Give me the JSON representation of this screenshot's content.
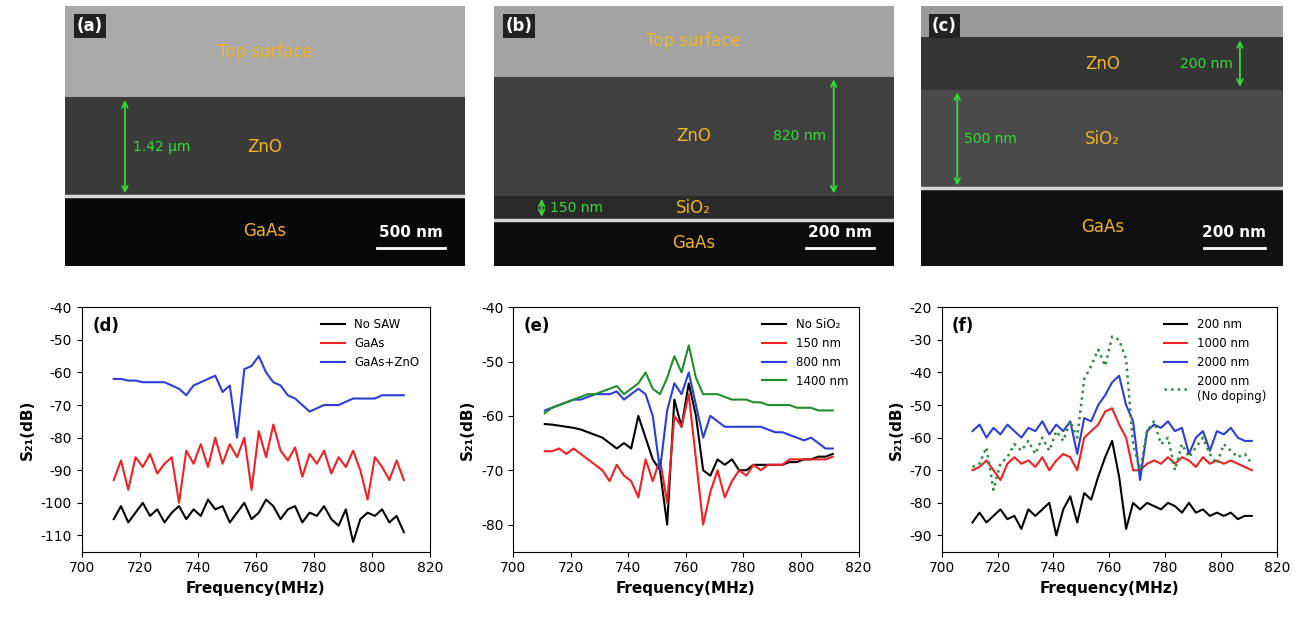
{
  "sem_images": [
    {
      "label": "(a)",
      "scale_bar": "500 nm",
      "layers": [
        {
          "name": "Top surface",
          "color": "#a9a9a9"
        },
        {
          "name": "ZnO",
          "color": "#3b3b3b",
          "thickness": "1.42 μm"
        },
        {
          "name": "GaAs",
          "color": "#080808"
        }
      ]
    },
    {
      "label": "(b)",
      "scale_bar": "200 nm",
      "layers": [
        {
          "name": "Top surface",
          "color": "#a3a3a3"
        },
        {
          "name": "ZnO",
          "color": "#404040",
          "thickness": "820 nm"
        },
        {
          "name": "SiO₂",
          "color": "#2a2a2a",
          "thickness": "150 nm"
        },
        {
          "name": "GaAs",
          "color": "#0c0c0c"
        }
      ]
    },
    {
      "label": "(c)",
      "scale_bar": "200 nm",
      "layers": [
        {
          "name": null,
          "color": "#9a9a9a"
        },
        {
          "name": "ZnO",
          "color": "#353535",
          "thickness": "200 nm"
        },
        {
          "name": "SiO₂",
          "color": "#4a4a4a",
          "thickness": "500 nm"
        },
        {
          "name": "GaAs",
          "color": "#101010"
        }
      ]
    }
  ],
  "chart_data": [
    {
      "type": "line",
      "title": "(d)",
      "x_label": "Frequency(MHz)",
      "y_label": "S₂₁(dB)",
      "x": [
        711,
        713.5,
        716,
        718.5,
        721,
        723.5,
        726,
        728.5,
        731,
        733.5,
        736,
        738.5,
        741,
        743.5,
        746,
        748.5,
        751,
        753.5,
        756,
        758.5,
        761,
        763.5,
        766,
        768.5,
        771,
        773.5,
        776,
        778.5,
        781,
        783.5,
        786,
        788.5,
        791,
        793.5,
        796,
        798.5,
        801,
        803.5,
        806,
        808.5,
        811
      ],
      "xlim": [
        700,
        820
      ],
      "xticks": [
        700,
        720,
        740,
        760,
        780,
        800,
        820
      ],
      "ylim": [
        -115,
        -40
      ],
      "yticks": [
        -110,
        -100,
        -90,
        -80,
        -70,
        -60,
        -50,
        -40
      ],
      "legend": "upper right",
      "series": [
        {
          "name": "No SAW",
          "color": "#000000",
          "line_style": "solid",
          "values": [
            -105,
            -101,
            -106,
            -103,
            -100,
            -104,
            -102,
            -106,
            -103,
            -101,
            -105,
            -102,
            -104,
            -99,
            -102,
            -101,
            -106,
            -103,
            -100,
            -105,
            -103,
            -99,
            -101,
            -105,
            -102,
            -101,
            -106,
            -103,
            -104,
            -101,
            -105,
            -107,
            -102,
            -112,
            -105,
            -103,
            -104,
            -102,
            -106,
            -104,
            -109
          ]
        },
        {
          "name": "GaAs",
          "color": "#ee2222",
          "line_style": "solid",
          "values": [
            -93,
            -87,
            -96,
            -86,
            -89,
            -85,
            -91,
            -88,
            -86,
            -100,
            -84,
            -88,
            -82,
            -89,
            -80,
            -88,
            -82,
            -86,
            -80,
            -96,
            -78,
            -86,
            -76,
            -84,
            -87,
            -83,
            -92,
            -85,
            -88,
            -84,
            -91,
            -86,
            -89,
            -84,
            -90,
            -99,
            -86,
            -89,
            -93,
            -87,
            -93
          ]
        },
        {
          "name": "GaAs+ZnO",
          "color": "#2b3fd6",
          "line_style": "solid",
          "values": [
            -62,
            -62,
            -62.5,
            -62.5,
            -63,
            -63,
            -63,
            -63,
            -64,
            -65,
            -67,
            -64,
            -63,
            -62,
            -61,
            -66,
            -64,
            -80,
            -59,
            -58,
            -55,
            -60,
            -63,
            -64,
            -67,
            -68,
            -70,
            -72,
            -71,
            -70,
            -70,
            -70,
            -69,
            -68,
            -68,
            -68,
            -68,
            -67,
            -67,
            -67,
            -67
          ]
        }
      ]
    },
    {
      "type": "line",
      "title": "(e)",
      "x_label": "Frequency(MHz)",
      "y_label": "S₂₁(dB)",
      "x": [
        711,
        713.5,
        716,
        718.5,
        721,
        723.5,
        726,
        728.5,
        731,
        733.5,
        736,
        738.5,
        741,
        743.5,
        746,
        748.5,
        751,
        753.5,
        756,
        758.5,
        761,
        763.5,
        766,
        768.5,
        771,
        773.5,
        776,
        778.5,
        781,
        783.5,
        786,
        788.5,
        791,
        793.5,
        796,
        798.5,
        801,
        803.5,
        806,
        808.5,
        811
      ],
      "xlim": [
        700,
        820
      ],
      "xticks": [
        700,
        720,
        740,
        760,
        780,
        800,
        820
      ],
      "ylim": [
        -85,
        -40
      ],
      "yticks": [
        -80,
        -70,
        -60,
        -50,
        -40
      ],
      "legend": "upper right",
      "series": [
        {
          "name": "No SiO₂",
          "color": "#000000",
          "line_style": "solid",
          "values": [
            -61.5,
            -61.6,
            -61.8,
            -62,
            -62.2,
            -62.5,
            -63,
            -63.5,
            -64,
            -65,
            -66,
            -65,
            -66,
            -60,
            -64,
            -68,
            -70,
            -80,
            -57,
            -62,
            -54,
            -60,
            -70,
            -71,
            -68,
            -69,
            -68,
            -70,
            -70,
            -69,
            -69,
            -69,
            -69,
            -69,
            -68.5,
            -68.5,
            -68,
            -68,
            -67.5,
            -67.5,
            -67
          ]
        },
        {
          "name": "150 nm",
          "color": "#ee2222",
          "line_style": "solid",
          "values": [
            -66.5,
            -66.5,
            -66,
            -67,
            -66,
            -67,
            -68,
            -69,
            -70,
            -72,
            -69,
            -71,
            -72,
            -75,
            -68,
            -72,
            -68,
            -76,
            -60,
            -62,
            -56,
            -68,
            -80,
            -74,
            -70,
            -75,
            -72,
            -70,
            -71,
            -69,
            -70,
            -69,
            -69,
            -69,
            -68,
            -68,
            -68,
            -68,
            -68,
            -68,
            -67.5
          ]
        },
        {
          "name": "800 nm",
          "color": "#2b3fd6",
          "line_style": "solid",
          "values": [
            -59,
            -58.5,
            -58,
            -57.5,
            -57,
            -57,
            -56.5,
            -56,
            -56,
            -56,
            -55.5,
            -57,
            -56,
            -55,
            -56,
            -60,
            -70,
            -59,
            -54,
            -56,
            -52,
            -58,
            -64,
            -60,
            -61,
            -62,
            -62,
            -62,
            -62,
            -62,
            -62,
            -62.5,
            -63,
            -63,
            -63.5,
            -64,
            -64.5,
            -64,
            -65,
            -66,
            -66
          ]
        },
        {
          "name": "1400 nm",
          "color": "#1f8f2a",
          "line_style": "solid",
          "values": [
            -59.5,
            -58.5,
            -58,
            -57.5,
            -57,
            -56.5,
            -56,
            -56,
            -55.5,
            -55,
            -54.5,
            -56,
            -55,
            -54,
            -52,
            -55,
            -56,
            -53,
            -49,
            -52,
            -47,
            -53,
            -56,
            -56,
            -56,
            -56.5,
            -57,
            -57,
            -57,
            -57.5,
            -57.5,
            -58,
            -58,
            -58,
            -58,
            -58.5,
            -58.5,
            -58.5,
            -59,
            -59,
            -59
          ]
        }
      ]
    },
    {
      "type": "line",
      "title": "(f)",
      "x_label": "Frequency(MHz)",
      "y_label": "S₂₁(dB)",
      "x": [
        711,
        713.5,
        716,
        718.5,
        721,
        723.5,
        726,
        728.5,
        731,
        733.5,
        736,
        738.5,
        741,
        743.5,
        746,
        748.5,
        751,
        753.5,
        756,
        758.5,
        761,
        763.5,
        766,
        768.5,
        771,
        773.5,
        776,
        778.5,
        781,
        783.5,
        786,
        788.5,
        791,
        793.5,
        796,
        798.5,
        801,
        803.5,
        806,
        808.5,
        811
      ],
      "xlim": [
        700,
        820
      ],
      "xticks": [
        700,
        720,
        740,
        760,
        780,
        800,
        820
      ],
      "ylim": [
        -95,
        -20
      ],
      "yticks": [
        -90,
        -80,
        -70,
        -60,
        -50,
        -40,
        -30,
        -20
      ],
      "legend": "upper right",
      "series": [
        {
          "name": "200 nm",
          "color": "#000000",
          "line_style": "solid",
          "values": [
            -86,
            -83,
            -86,
            -84,
            -82,
            -85,
            -84,
            -88,
            -82,
            -84,
            -82,
            -80,
            -90,
            -82,
            -78,
            -86,
            -77,
            -79,
            -72,
            -66,
            -61,
            -72,
            -88,
            -80,
            -82,
            -80,
            -81,
            -82,
            -80,
            -81,
            -83,
            -80,
            -83,
            -82,
            -84,
            -83,
            -84,
            -83,
            -85,
            -84,
            -84
          ]
        },
        {
          "name": "1000 nm",
          "color": "#ee2222",
          "line_style": "solid",
          "values": [
            -70,
            -69,
            -67,
            -70,
            -73,
            -68,
            -66,
            -68,
            -67,
            -69,
            -66,
            -70,
            -67,
            -65,
            -66,
            -70,
            -60,
            -58,
            -56,
            -52,
            -51,
            -56,
            -60,
            -70,
            -70,
            -68,
            -67,
            -68,
            -66,
            -68,
            -66,
            -67,
            -69,
            -66,
            -68,
            -67,
            -68,
            -67,
            -68,
            -69,
            -70
          ]
        },
        {
          "name": "2000 nm",
          "color": "#2b3fd6",
          "line_style": "solid",
          "values": [
            -58,
            -56,
            -60,
            -57,
            -59,
            -56,
            -58,
            -60,
            -57,
            -58,
            -55,
            -59,
            -56,
            -58,
            -55,
            -65,
            -54,
            -55,
            -50,
            -47,
            -43,
            -41,
            -50,
            -55,
            -73,
            -58,
            -56,
            -57,
            -55,
            -58,
            -57,
            -65,
            -60,
            -58,
            -64,
            -58,
            -59,
            -57,
            -60,
            -61,
            -61
          ]
        },
        {
          "name": "2000 nm\n(No doping)",
          "color": "#2e8b3a",
          "line_style": "dotted",
          "values": [
            -69,
            -68,
            -63,
            -76,
            -68,
            -66,
            -62,
            -64,
            -61,
            -65,
            -60,
            -64,
            -58,
            -61,
            -55,
            -60,
            -42,
            -38,
            -33,
            -38,
            -29,
            -30,
            -36,
            -62,
            -70,
            -58,
            -55,
            -62,
            -60,
            -70,
            -62,
            -66,
            -63,
            -60,
            -65,
            -68,
            -62,
            -64,
            -66,
            -65,
            -68
          ]
        }
      ]
    }
  ]
}
